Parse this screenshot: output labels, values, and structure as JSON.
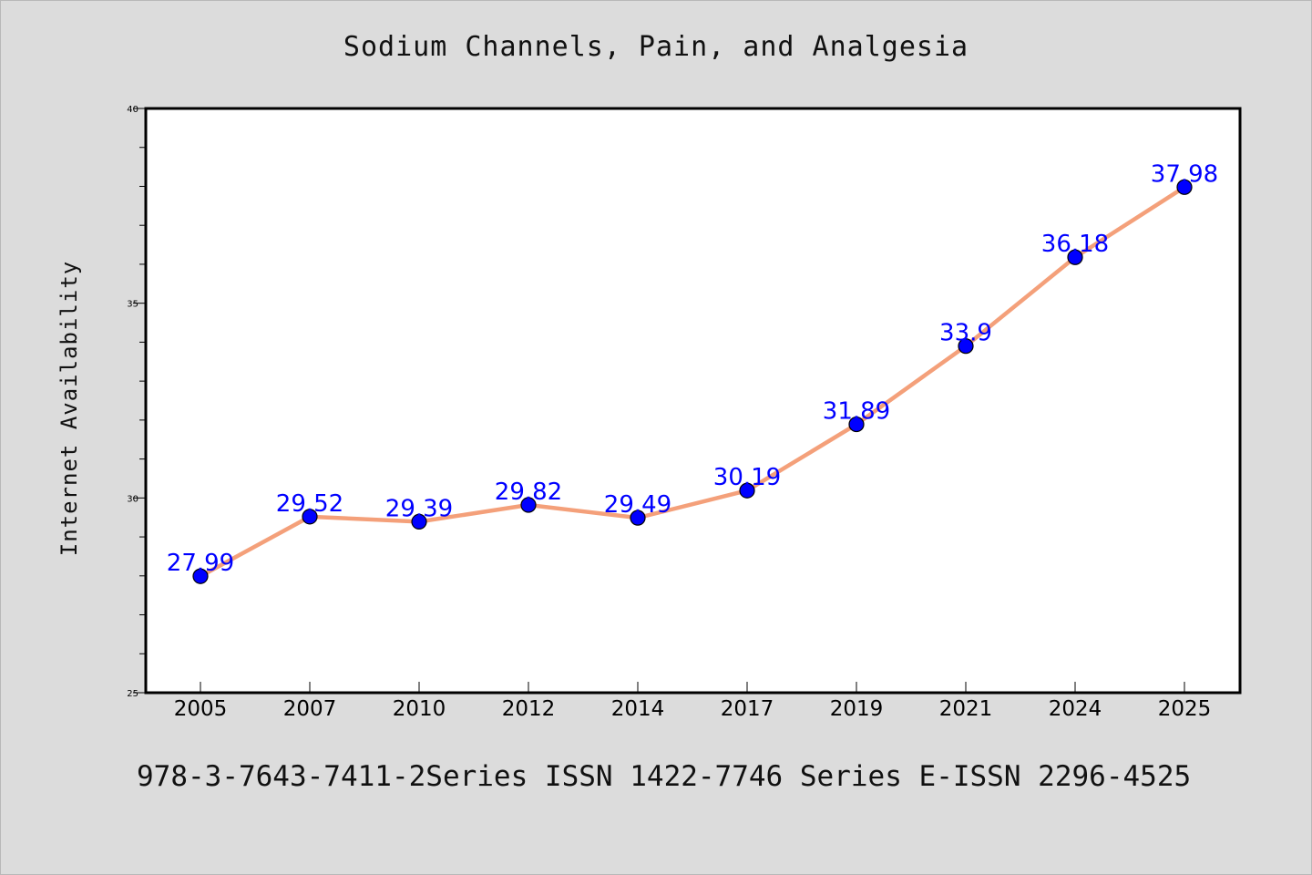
{
  "chart_data": {
    "type": "line",
    "title": "Sodium Channels, Pain, and Analgesia",
    "xlabel": "",
    "ylabel": "Internet Availability",
    "categories": [
      "2005",
      "2007",
      "2010",
      "2012",
      "2014",
      "2017",
      "2019",
      "2021",
      "2024",
      "2025"
    ],
    "series": [
      {
        "values": [
          27.99,
          29.52,
          29.39,
          29.82,
          29.49,
          30.19,
          31.89,
          33.9,
          36.18,
          37.98
        ]
      }
    ],
    "data_labels": [
      "27.99",
      "29.52",
      "29.39",
      "29.82",
      "29.49",
      "30.19",
      "31.89",
      "33.9",
      "36.18",
      "37.98"
    ],
    "ylim": [
      25,
      40
    ],
    "yticks": [
      "25",
      "30",
      "35",
      "40"
    ],
    "grid": false,
    "colors": {
      "line": "#f4a07a",
      "marker": "#0000ff",
      "label": "#0000ff",
      "background": "#dcdcdc",
      "plot_background": "#ffffff"
    }
  },
  "footer": "978-3-7643-7411-2Series ISSN 1422-7746 Series E-ISSN 2296-4525"
}
